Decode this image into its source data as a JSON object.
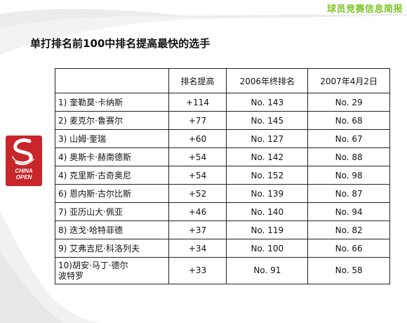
{
  "header": {
    "top_right": "球员竞赛信息简报",
    "title": "单打排名前100中排名提高最快的选手"
  },
  "logo": {
    "line1": "CHINA",
    "line2": "OPEN"
  },
  "table": {
    "columns": [
      "",
      "排名提高",
      "2006年终排名",
      "2007年4月2日"
    ],
    "rows": [
      {
        "name": "1) 奎勒莫·卡纳斯",
        "gain": "+114",
        "rank2006": "No. 143",
        "rank2007": "No. 29"
      },
      {
        "name": "2) 麦克尔·鲁赛尔",
        "gain": "+77",
        "rank2006": "No. 145",
        "rank2007": "No. 68"
      },
      {
        "name": "3) 山姆·奎瑞",
        "gain": "+60",
        "rank2006": "No. 127",
        "rank2007": "No. 67"
      },
      {
        "name": "4) 奥斯卡·赫南德斯",
        "gain": "+54",
        "rank2006": "No. 142",
        "rank2007": "No. 88"
      },
      {
        "name": "4) 克里斯·古奇奥尼",
        "gain": "+54",
        "rank2006": "No. 152",
        "rank2007": "No. 98"
      },
      {
        "name": "6) 恩内斯·古尔比斯",
        "gain": "+52",
        "rank2006": "No. 139",
        "rank2007": "No. 87"
      },
      {
        "name": "7) 亚历山大·佩亚",
        "gain": "+46",
        "rank2006": "No. 140",
        "rank2007": "No. 94"
      },
      {
        "name": "8) 迭戈·哈特菲德",
        "gain": "+37",
        "rank2006": "No. 119",
        "rank2007": "No. 82"
      },
      {
        "name": "9) 艾弗吉尼·科洛列夫",
        "gain": "+34",
        "rank2006": "No. 100",
        "rank2007": "No. 66"
      },
      {
        "name_line1": "10)胡安·马丁·德尔",
        "name_line2": "波特罗",
        "gain": "+33",
        "rank2006": "No. 91",
        "rank2007": "No. 58"
      }
    ]
  },
  "colors": {
    "accent": "#7cc628",
    "logo_red": "#c8262a",
    "swoosh": "#e6e6e6"
  }
}
